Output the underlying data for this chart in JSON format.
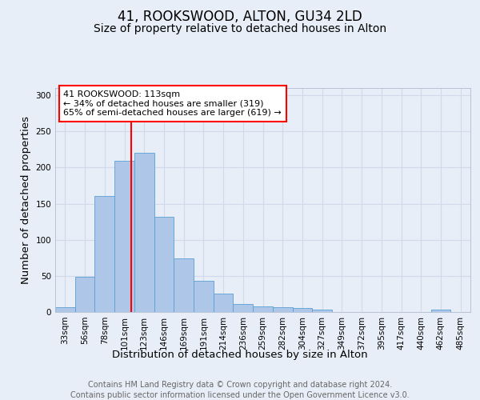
{
  "title": "41, ROOKSWOOD, ALTON, GU34 2LD",
  "subtitle": "Size of property relative to detached houses in Alton",
  "xlabel": "Distribution of detached houses by size in Alton",
  "ylabel": "Number of detached properties",
  "footnote1": "Contains HM Land Registry data © Crown copyright and database right 2024.",
  "footnote2": "Contains public sector information licensed under the Open Government Licence v3.0.",
  "categories": [
    "33sqm",
    "56sqm",
    "78sqm",
    "101sqm",
    "123sqm",
    "146sqm",
    "169sqm",
    "191sqm",
    "214sqm",
    "236sqm",
    "259sqm",
    "282sqm",
    "304sqm",
    "327sqm",
    "349sqm",
    "372sqm",
    "395sqm",
    "417sqm",
    "440sqm",
    "462sqm",
    "485sqm"
  ],
  "values": [
    7,
    49,
    161,
    209,
    220,
    132,
    74,
    43,
    25,
    11,
    8,
    7,
    5,
    3,
    0,
    0,
    0,
    0,
    0,
    3,
    0
  ],
  "bar_color": "#aec6e8",
  "bar_edge_color": "#5a9fd4",
  "ylim": [
    0,
    310
  ],
  "yticks": [
    0,
    50,
    100,
    150,
    200,
    250,
    300
  ],
  "red_line_x": 3.35,
  "annotation_text": "41 ROOKSWOOD: 113sqm\n← 34% of detached houses are smaller (319)\n65% of semi-detached houses are larger (619) →",
  "annotation_box_color": "white",
  "annotation_box_edge_color": "red",
  "red_line_color": "red",
  "background_color": "#e8eef7",
  "grid_color": "#d0daea",
  "title_fontsize": 12,
  "subtitle_fontsize": 10,
  "axis_label_fontsize": 9.5,
  "tick_fontsize": 7.5,
  "annotation_fontsize": 8,
  "footnote_fontsize": 7
}
